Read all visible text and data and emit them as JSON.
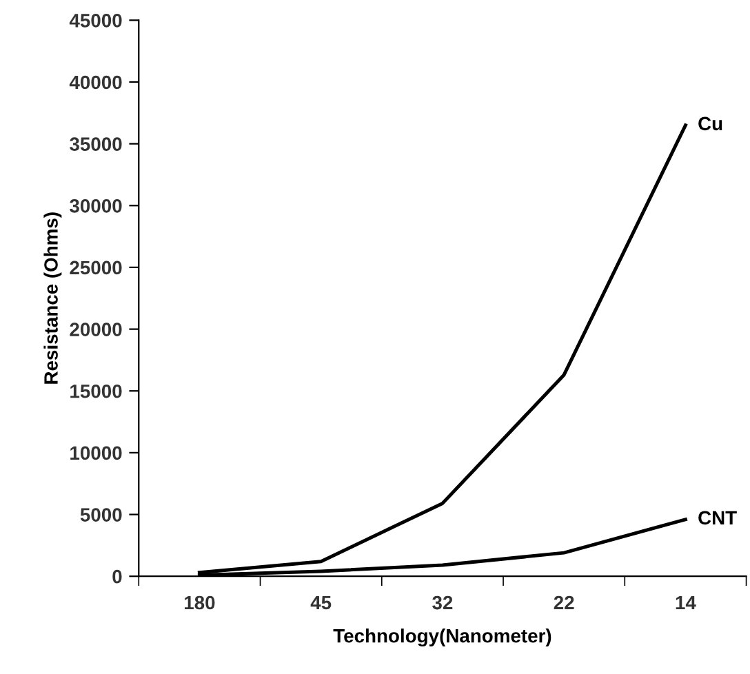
{
  "chart_data": {
    "type": "line",
    "xlabel": "Technology(Nanometer)",
    "ylabel": "Resistance (Ohms)",
    "categories": [
      "180",
      "45",
      "32",
      "22",
      "14"
    ],
    "series": [
      {
        "name": "Cu",
        "color": "#000000",
        "values": [
          300,
          1200,
          5900,
          16300,
          36500
        ]
      },
      {
        "name": "CNT",
        "color": "#000000",
        "values": [
          100,
          400,
          900,
          1900,
          4600
        ]
      }
    ],
    "ylim": [
      0,
      45000
    ],
    "yticks": [
      0,
      5000,
      10000,
      15000,
      20000,
      25000,
      30000,
      35000,
      40000,
      45000
    ],
    "grid": false,
    "legend": false,
    "marker": "none",
    "line_style": "solid"
  }
}
